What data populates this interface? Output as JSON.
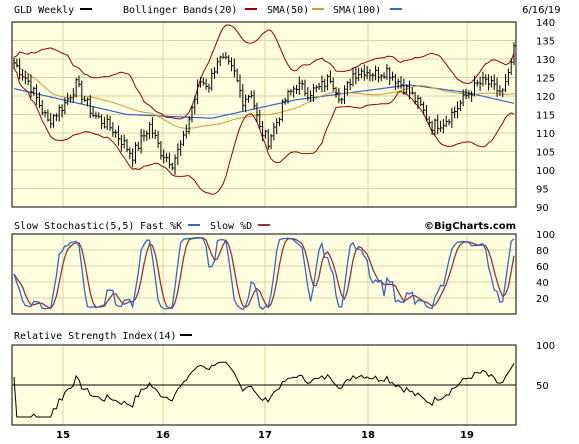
{
  "header": {
    "ticker": "GLD Weekly",
    "bb_label": "Bollinger Bands(20)",
    "sma50_label": "SMA(50)",
    "sma100_label": "SMA(100)",
    "date": "6/16/19"
  },
  "stoch_panel": {
    "title": "Slow Stochastic(5,5)",
    "fast_label": "Fast %K",
    "slow_label": "Slow %D",
    "watermark": "©BigCharts.com"
  },
  "rsi_panel": {
    "title": "Relative Strength Index(14)"
  },
  "colors": {
    "plot_bg": "#ffffe0",
    "grid": "#d4d4a0",
    "price": "#000000",
    "bollinger": "#990000",
    "sma50": "#990000",
    "sma100": "#cc9933",
    "fast_k": "#3366cc",
    "slow_d": "#993333",
    "rsi": "#000000"
  },
  "chart_data": [
    {
      "type": "ohlc",
      "x_ticks": [
        "15",
        "16",
        "17",
        "18",
        "19"
      ],
      "ylim": [
        90,
        140
      ],
      "y_ticks": [
        90,
        95,
        100,
        105,
        110,
        115,
        120,
        125,
        130,
        135,
        140
      ],
      "close_key_points": [
        [
          0,
          129
        ],
        [
          5,
          124
        ],
        [
          12,
          113
        ],
        [
          18,
          118
        ],
        [
          22,
          123
        ],
        [
          28,
          115
        ],
        [
          35,
          111
        ],
        [
          42,
          104
        ],
        [
          48,
          112
        ],
        [
          52,
          105
        ],
        [
          56,
          102
        ],
        [
          60,
          108
        ],
        [
          63,
          117
        ],
        [
          66,
          124
        ],
        [
          69,
          123
        ],
        [
          72,
          130
        ],
        [
          75,
          129
        ],
        [
          78,
          126
        ],
        [
          81,
          119
        ],
        [
          84,
          121
        ],
        [
          87,
          111
        ],
        [
          90,
          108
        ],
        [
          93,
          113
        ],
        [
          96,
          119
        ],
        [
          100,
          123
        ],
        [
          104,
          121
        ],
        [
          108,
          122
        ],
        [
          112,
          125
        ],
        [
          116,
          119
        ],
        [
          120,
          126
        ],
        [
          124,
          127
        ],
        [
          128,
          126
        ],
        [
          132,
          127
        ],
        [
          136,
          124
        ],
        [
          140,
          121
        ],
        [
          144,
          117
        ],
        [
          148,
          112
        ],
        [
          152,
          113
        ],
        [
          156,
          116
        ],
        [
          160,
          120
        ],
        [
          164,
          123
        ],
        [
          167,
          124
        ],
        [
          170,
          122
        ],
        [
          173,
          121
        ],
        [
          175,
          125
        ],
        [
          176,
          129
        ],
        [
          177,
          132
        ]
      ],
      "sma100_key_points": [
        [
          0,
          122
        ],
        [
          40,
          115
        ],
        [
          70,
          114
        ],
        [
          100,
          119
        ],
        [
          140,
          123
        ],
        [
          160,
          121
        ],
        [
          177,
          118
        ]
      ]
    },
    {
      "type": "line",
      "name": "Slow Stochastic",
      "ylim": [
        0,
        100
      ],
      "y_ticks": [
        0,
        20,
        40,
        60,
        80,
        100
      ]
    },
    {
      "type": "line",
      "name": "RSI",
      "ylim": [
        0,
        100
      ],
      "y_ticks": [
        0,
        50,
        100
      ],
      "midline": 50
    }
  ]
}
